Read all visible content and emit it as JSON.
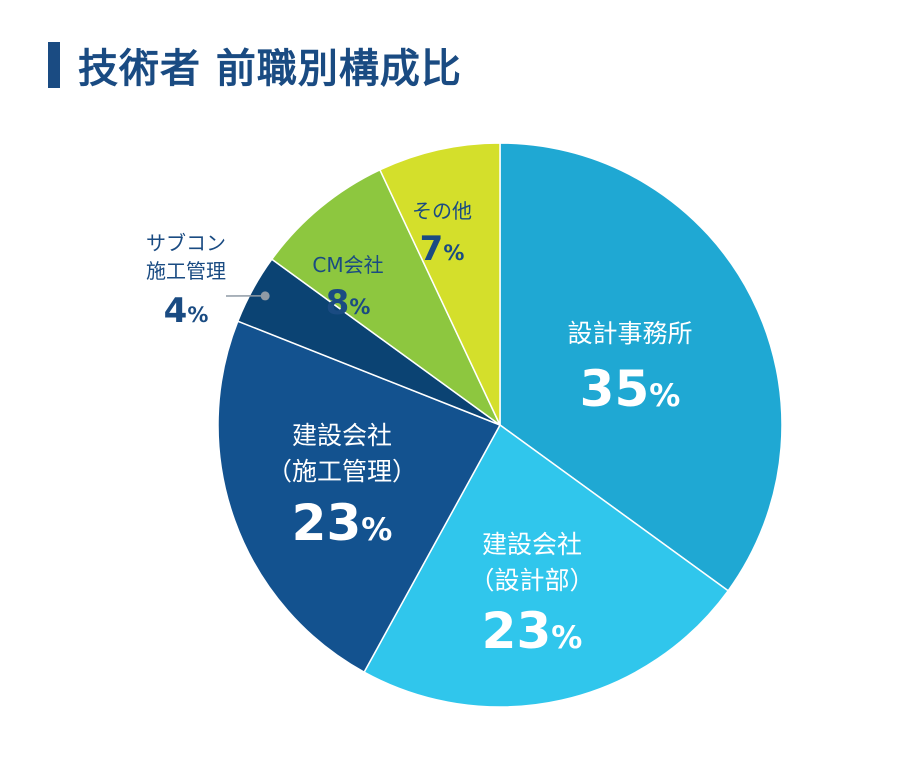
{
  "title": "技術者 前職別構成比",
  "chart_data": {
    "type": "pie",
    "title": "技術者 前職別構成比",
    "start": "top",
    "direction": "clockwise",
    "slices": [
      {
        "label_lines": [
          "設計事務所"
        ],
        "value": 35,
        "display": "35%",
        "color": "#1fa8d3",
        "text_color": "#ffffff"
      },
      {
        "label_lines": [
          "建設会社",
          "（設計部）"
        ],
        "value": 23,
        "display": "23%",
        "color": "#30c6ec",
        "text_color": "#ffffff"
      },
      {
        "label_lines": [
          "建設会社",
          "（施工管理）"
        ],
        "value": 23,
        "display": "23%",
        "color": "#13528f",
        "text_color": "#ffffff"
      },
      {
        "label_lines": [
          "サブコン",
          "施工管理"
        ],
        "value": 4,
        "display": "4%",
        "color": "#0b4373",
        "text_color": "#1a4b82",
        "outside": true
      },
      {
        "label_lines": [
          "CM会社"
        ],
        "value": 8,
        "display": "8%",
        "color": "#8dc73f",
        "text_color": "#1a4b82"
      },
      {
        "label_lines": [
          "その他"
        ],
        "value": 7,
        "display": "7%",
        "color": "#d4df2b",
        "text_color": "#1a4b82"
      }
    ]
  }
}
